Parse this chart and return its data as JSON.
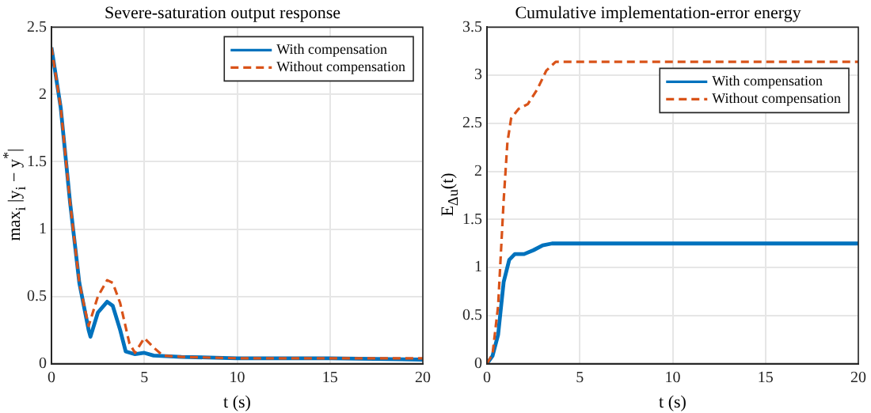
{
  "chart_data": [
    {
      "type": "line",
      "title": "Severe-saturation output response",
      "xlabel": "t (s)",
      "ylabel": "max$_{i}$ |y$_{i}$ − y$^{*}$|",
      "xlim": [
        0,
        20
      ],
      "ylim": [
        0,
        2.5
      ],
      "xticks": [
        0,
        5,
        10,
        15,
        20
      ],
      "yticks": [
        0,
        0.5,
        1,
        1.5,
        2,
        2.5
      ],
      "grid": true,
      "legend": "top right",
      "marker": "none",
      "series": [
        {
          "name": "With compensation",
          "color": "#0072bd",
          "line_style": "solid",
          "x": [
            0,
            0.5,
            1,
            1.5,
            2,
            2.1,
            2.5,
            3,
            3.3,
            3.7,
            4,
            4.5,
            5,
            5.5,
            7,
            10,
            15,
            20
          ],
          "values": [
            2.35,
            1.9,
            1.2,
            0.6,
            0.25,
            0.2,
            0.38,
            0.46,
            0.43,
            0.25,
            0.09,
            0.07,
            0.08,
            0.06,
            0.05,
            0.04,
            0.04,
            0.03
          ]
        },
        {
          "name": "Without compensation",
          "color": "#d95319",
          "line_style": "dashed",
          "x": [
            0,
            0.5,
            1,
            1.5,
            2,
            2.5,
            3,
            3.3,
            3.7,
            4.2,
            4.5,
            5,
            5.5,
            6,
            7,
            10,
            15,
            20
          ],
          "values": [
            2.35,
            1.9,
            1.2,
            0.6,
            0.28,
            0.5,
            0.62,
            0.6,
            0.45,
            0.15,
            0.08,
            0.19,
            0.12,
            0.06,
            0.05,
            0.04,
            0.04,
            0.04
          ]
        }
      ]
    },
    {
      "type": "line",
      "title": "Cumulative implementation-error energy",
      "xlabel": "t (s)",
      "ylabel": "E$_{Δu}$(t)",
      "xlim": [
        0,
        20
      ],
      "ylim": [
        0,
        3.5
      ],
      "xticks": [
        0,
        5,
        10,
        15,
        20
      ],
      "yticks": [
        0,
        0.5,
        1,
        1.5,
        2,
        2.5,
        3,
        3.5
      ],
      "grid": true,
      "legend": "top right",
      "marker": "none",
      "series": [
        {
          "name": "With compensation",
          "color": "#0072bd",
          "line_style": "solid",
          "x": [
            0,
            0.3,
            0.6,
            0.9,
            1.2,
            1.5,
            2,
            2.5,
            3,
            3.5,
            20
          ],
          "values": [
            0,
            0.08,
            0.3,
            0.85,
            1.08,
            1.14,
            1.14,
            1.18,
            1.23,
            1.25,
            1.25
          ]
        },
        {
          "name": "Without compensation",
          "color": "#d95319",
          "line_style": "dashed",
          "x": [
            0,
            0.3,
            0.6,
            0.9,
            1.1,
            1.3,
            1.7,
            2.2,
            2.7,
            3.2,
            3.7,
            20
          ],
          "values": [
            0,
            0.1,
            0.6,
            1.7,
            2.3,
            2.55,
            2.65,
            2.7,
            2.85,
            3.05,
            3.14,
            3.14
          ]
        }
      ]
    }
  ]
}
